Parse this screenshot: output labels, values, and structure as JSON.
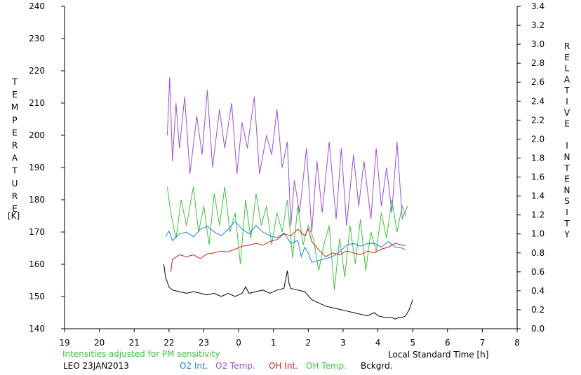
{
  "chart_data": {
    "type": "line",
    "title": "",
    "note": "Intensities adjusted for PM sensitivity",
    "station_label": "LEO 23JAN2013",
    "xlabel": "Local Standard Time [h]",
    "ylabel_left_letters": [
      "T",
      "E",
      "M",
      "P",
      "E",
      "R",
      "A",
      "T",
      "U",
      "R",
      "E"
    ],
    "ylabel_left_unit": "[K]",
    "ylabel_right_letters": [
      "R",
      "E",
      "L",
      "A",
      "T",
      "I",
      "V",
      "E",
      " ",
      "I",
      "N",
      "T",
      "E",
      "N",
      "S",
      "I",
      "T",
      "Y"
    ],
    "x_ticks": [
      19,
      20,
      21,
      22,
      23,
      0,
      1,
      2,
      3,
      4,
      5,
      6,
      7,
      8
    ],
    "x_tick_labels": [
      "19",
      "20",
      "21",
      "22",
      "23",
      "0",
      "1",
      "2",
      "3",
      "4",
      "5",
      "6",
      "7",
      "8"
    ],
    "y_left_range": [
      140,
      240
    ],
    "y_left_ticks": [
      140,
      150,
      160,
      170,
      180,
      190,
      200,
      210,
      220,
      230,
      240
    ],
    "y_right_range": [
      0.0,
      3.4
    ],
    "y_right_ticks": [
      "0.0",
      "0.2",
      "0.4",
      "0.6",
      "0.8",
      "1.0",
      "1.2",
      "1.4",
      "1.6",
      "1.8",
      "2.0",
      "2.2",
      "2.4",
      "2.6",
      "2.8",
      "3.0",
      "3.2",
      "3.4"
    ],
    "grid": false,
    "legend_position": "bottom",
    "series": [
      {
        "name": "O2 Int.",
        "axis": "right",
        "color": "#1f7fe0",
        "x": [
          21.9,
          22.0,
          22.1,
          22.3,
          22.5,
          22.7,
          22.9,
          23.1,
          23.3,
          23.5,
          23.7,
          23.9,
          24.1,
          24.3,
          24.5,
          24.7,
          24.9,
          25.1,
          25.3,
          25.5,
          25.7,
          25.8,
          25.9,
          26.0,
          26.1,
          26.3,
          26.5,
          26.7,
          26.9,
          27.1,
          27.3,
          27.5,
          27.7,
          27.9,
          28.1,
          28.3,
          28.5,
          28.7,
          28.8
        ],
        "y": [
          0.97,
          1.03,
          0.93,
          1.0,
          1.02,
          0.97,
          1.05,
          1.08,
          1.02,
          0.98,
          1.05,
          1.13,
          1.05,
          1.0,
          1.09,
          1.02,
          0.98,
          0.96,
          1.01,
          0.9,
          0.93,
          0.76,
          0.86,
          0.8,
          0.7,
          0.72,
          0.74,
          0.76,
          0.81,
          0.88,
          0.9,
          0.87,
          0.9,
          0.9,
          0.86,
          0.92,
          0.86,
          0.85,
          0.83
        ]
      },
      {
        "name": "O2 Temp.",
        "axis": "left",
        "color": "#9b4fd2",
        "x": [
          21.95,
          22.02,
          22.1,
          22.2,
          22.3,
          22.45,
          22.6,
          22.8,
          22.95,
          23.1,
          23.25,
          23.45,
          23.6,
          23.8,
          23.95,
          24.1,
          24.25,
          24.45,
          24.6,
          24.8,
          24.95,
          25.1,
          25.25,
          25.4,
          25.5,
          25.6,
          25.75,
          25.95,
          26.1,
          26.25,
          26.4,
          26.6,
          26.8,
          26.95,
          27.1,
          27.3,
          27.45,
          27.6,
          27.8,
          27.95,
          28.1,
          28.25,
          28.4,
          28.55,
          28.7,
          28.85
        ],
        "y": [
          200,
          218,
          192,
          210,
          196,
          212,
          188,
          206,
          194,
          214,
          190,
          208,
          196,
          210,
          188,
          204,
          196,
          212,
          188,
          200,
          194,
          208,
          190,
          198,
          172,
          186,
          176,
          196,
          170,
          192,
          176,
          198,
          174,
          196,
          172,
          194,
          178,
          192,
          174,
          196,
          178,
          190,
          176,
          198,
          174,
          178
        ]
      },
      {
        "name": "OH Int.",
        "axis": "right",
        "color": "#d02020",
        "x": [
          22.05,
          22.1,
          22.3,
          22.5,
          22.7,
          22.9,
          23.1,
          23.3,
          23.5,
          23.7,
          23.9,
          24.1,
          24.3,
          24.5,
          24.7,
          24.9,
          25.1,
          25.3,
          25.5,
          25.7,
          25.9,
          26.0,
          26.1,
          26.3,
          26.5,
          26.7,
          26.9,
          27.1,
          27.3,
          27.5,
          27.7,
          27.9,
          28.1,
          28.3,
          28.5,
          28.7,
          28.8
        ],
        "y": [
          0.6,
          0.73,
          0.78,
          0.76,
          0.78,
          0.74,
          0.79,
          0.8,
          0.82,
          0.81,
          0.84,
          0.87,
          0.88,
          0.9,
          0.88,
          0.92,
          0.94,
          1.0,
          0.98,
          1.05,
          0.98,
          1.05,
          0.92,
          0.83,
          0.76,
          0.8,
          0.78,
          0.82,
          0.8,
          0.78,
          0.82,
          0.8,
          0.84,
          0.86,
          0.9,
          0.88,
          0.88
        ]
      },
      {
        "name": "OH Temp.",
        "axis": "left",
        "color": "#3dc43d",
        "x": [
          21.95,
          22.05,
          22.2,
          22.35,
          22.5,
          22.7,
          22.85,
          23.0,
          23.15,
          23.3,
          23.45,
          23.6,
          23.75,
          23.9,
          24.05,
          24.2,
          24.35,
          24.5,
          24.65,
          24.8,
          24.95,
          25.1,
          25.25,
          25.4,
          25.55,
          25.7,
          25.85,
          26.0,
          26.15,
          26.3,
          26.45,
          26.6,
          26.75,
          26.9,
          27.05,
          27.2,
          27.35,
          27.5,
          27.65,
          27.8,
          27.95,
          28.1,
          28.25,
          28.4,
          28.55,
          28.7,
          28.8
        ],
        "y": [
          184,
          176,
          168,
          180,
          172,
          184,
          170,
          178,
          166,
          182,
          172,
          184,
          170,
          176,
          160,
          180,
          168,
          182,
          172,
          178,
          166,
          176,
          170,
          180,
          162,
          178,
          166,
          172,
          168,
          158,
          166,
          172,
          152,
          168,
          156,
          172,
          160,
          174,
          158,
          170,
          164,
          176,
          168,
          180,
          170,
          178,
          175
        ]
      },
      {
        "name": "Bckgrd.",
        "axis": "left",
        "color": "#000000",
        "x": [
          21.85,
          21.9,
          22.0,
          22.1,
          22.3,
          22.5,
          22.7,
          22.9,
          23.1,
          23.3,
          23.5,
          23.7,
          23.9,
          24.1,
          24.2,
          24.3,
          24.5,
          24.7,
          24.9,
          25.1,
          25.3,
          25.4,
          25.45,
          25.5,
          25.7,
          25.9,
          26.1,
          26.3,
          26.5,
          26.7,
          26.9,
          27.1,
          27.3,
          27.5,
          27.7,
          27.9,
          28.0,
          28.2,
          28.4,
          28.5,
          28.6,
          28.7,
          28.8,
          28.9,
          29.0
        ],
        "y": [
          160,
          156,
          153,
          152,
          151.5,
          151,
          151.5,
          151,
          150.5,
          151,
          150,
          151,
          150,
          151,
          153,
          151,
          151.5,
          152,
          151,
          152,
          152.5,
          158,
          154,
          152.5,
          152,
          151.5,
          149,
          148,
          147,
          146.5,
          146,
          145.5,
          145,
          144.5,
          144,
          145,
          144,
          143.5,
          143.5,
          143,
          143.5,
          143.5,
          144,
          146,
          149
        ]
      }
    ]
  }
}
